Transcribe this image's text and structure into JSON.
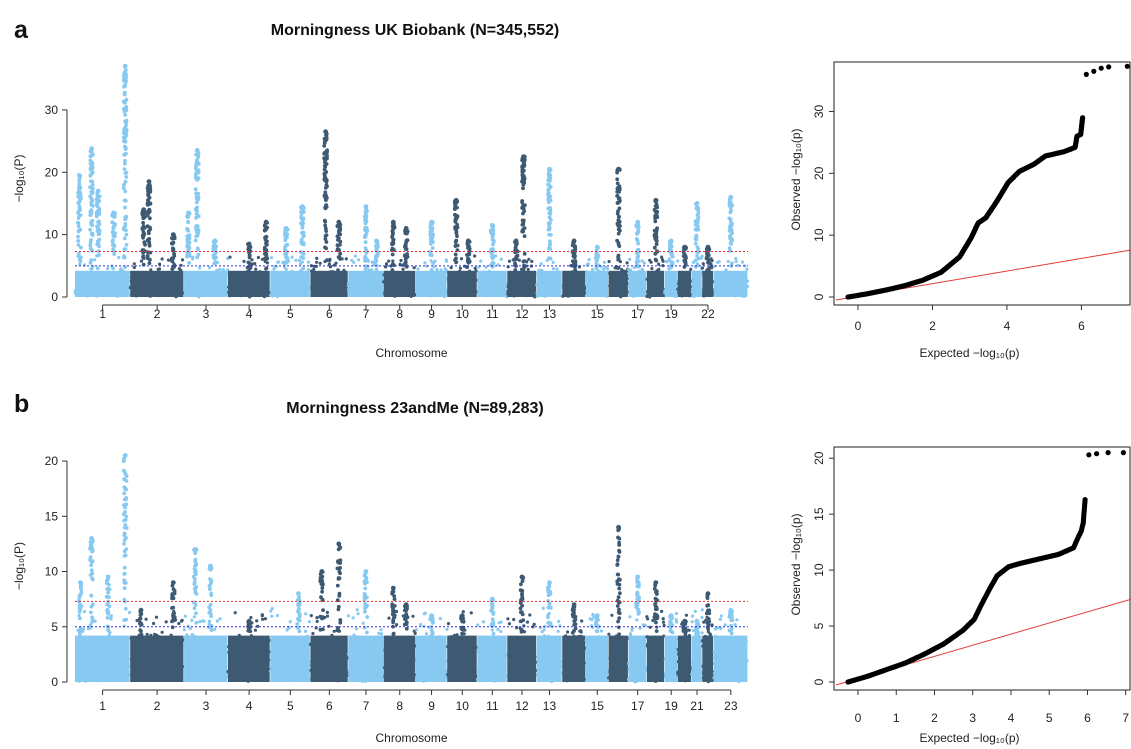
{
  "colors": {
    "light": "#87c9f0",
    "dark": "#3d5a72",
    "sig": "#e03030",
    "sugg": "#3030d0",
    "qq_point": "#000000",
    "qq_line": "#e23a3a"
  },
  "panels": [
    {
      "label": "a",
      "chart_data": {
        "type": "scatter",
        "title": "Morningness UK Biobank (N=345,552)",
        "xlabel": "Chromosome",
        "ylabel": "−log₁₀(P)",
        "ylim": [
          0,
          38
        ],
        "yticks": [
          0,
          10,
          20,
          30
        ],
        "x_tick_labels": [
          "1",
          "2",
          "3",
          "4",
          "5",
          "6",
          "7",
          "8",
          "9",
          "10",
          "11",
          "12",
          "13",
          "15",
          "17",
          "19",
          "22"
        ],
        "genome_wide_threshold": 7.3,
        "suggestive_threshold": 5,
        "chromosomes": [
          {
            "chr": 1,
            "peaks": [
              {
                "pos": 0.08,
                "y": 19.5
              },
              {
                "pos": 0.3,
                "y": 23.8
              },
              {
                "pos": 0.42,
                "y": 17
              },
              {
                "pos": 0.7,
                "y": 13.5
              },
              {
                "pos": 0.91,
                "y": 37
              }
            ]
          },
          {
            "chr": 2,
            "peaks": [
              {
                "pos": 0.25,
                "y": 14
              },
              {
                "pos": 0.35,
                "y": 18.5
              },
              {
                "pos": 0.8,
                "y": 10
              }
            ]
          },
          {
            "chr": 3,
            "peaks": [
              {
                "pos": 0.1,
                "y": 13.5
              },
              {
                "pos": 0.3,
                "y": 23.5
              },
              {
                "pos": 0.7,
                "y": 9
              }
            ]
          },
          {
            "chr": 4,
            "peaks": [
              {
                "pos": 0.5,
                "y": 8.5
              },
              {
                "pos": 0.9,
                "y": 12
              }
            ]
          },
          {
            "chr": 5,
            "peaks": [
              {
                "pos": 0.4,
                "y": 11
              },
              {
                "pos": 0.8,
                "y": 14.5
              }
            ]
          },
          {
            "chr": 6,
            "peaks": [
              {
                "pos": 0.4,
                "y": 26.5
              },
              {
                "pos": 0.75,
                "y": 12
              }
            ]
          },
          {
            "chr": 7,
            "peaks": [
              {
                "pos": 0.5,
                "y": 14.5
              },
              {
                "pos": 0.8,
                "y": 9
              }
            ]
          },
          {
            "chr": 8,
            "peaks": [
              {
                "pos": 0.3,
                "y": 12
              },
              {
                "pos": 0.7,
                "y": 11
              }
            ]
          },
          {
            "chr": 9,
            "peaks": [
              {
                "pos": 0.5,
                "y": 12
              }
            ]
          },
          {
            "chr": 10,
            "peaks": [
              {
                "pos": 0.3,
                "y": 15.5
              },
              {
                "pos": 0.7,
                "y": 9
              }
            ]
          },
          {
            "chr": 11,
            "peaks": [
              {
                "pos": 0.5,
                "y": 11.5
              }
            ]
          },
          {
            "chr": 12,
            "peaks": [
              {
                "pos": 0.3,
                "y": 9
              },
              {
                "pos": 0.55,
                "y": 22.5
              }
            ]
          },
          {
            "chr": 13,
            "peaks": [
              {
                "pos": 0.5,
                "y": 20.5
              }
            ]
          },
          {
            "chr": 14,
            "peaks": [
              {
                "pos": 0.5,
                "y": 9
              }
            ]
          },
          {
            "chr": 15,
            "peaks": [
              {
                "pos": 0.5,
                "y": 8
              }
            ]
          },
          {
            "chr": 16,
            "peaks": [
              {
                "pos": 0.5,
                "y": 20.5
              }
            ]
          },
          {
            "chr": 17,
            "peaks": [
              {
                "pos": 0.5,
                "y": 12
              }
            ]
          },
          {
            "chr": 18,
            "peaks": [
              {
                "pos": 0.5,
                "y": 15.5
              }
            ]
          },
          {
            "chr": 19,
            "peaks": [
              {
                "pos": 0.5,
                "y": 9
              }
            ]
          },
          {
            "chr": 20,
            "peaks": [
              {
                "pos": 0.5,
                "y": 8
              }
            ]
          },
          {
            "chr": 21,
            "peaks": [
              {
                "pos": 0.5,
                "y": 15
              }
            ]
          },
          {
            "chr": 22,
            "peaks": [
              {
                "pos": 0.5,
                "y": 8
              }
            ]
          },
          {
            "chr": 23,
            "peaks": [
              {
                "pos": 0.5,
                "y": 16
              }
            ]
          }
        ]
      },
      "qq_data": {
        "type": "scatter",
        "xlabel": "Expected −log₁₀(p)",
        "ylabel": "Observed −log₁₀(p)",
        "xlim": [
          0,
          7.6
        ],
        "ylim": [
          0,
          38
        ],
        "xticks": [
          0,
          2,
          4,
          6
        ],
        "yticks": [
          0,
          10,
          20,
          30
        ],
        "points": [
          [
            0,
            0
          ],
          [
            0.5,
            0.5
          ],
          [
            1,
            1.1
          ],
          [
            1.5,
            1.8
          ],
          [
            2,
            2.7
          ],
          [
            2.5,
            4
          ],
          [
            3,
            6.5
          ],
          [
            3.3,
            9.5
          ],
          [
            3.5,
            12
          ],
          [
            3.7,
            12.8
          ],
          [
            4,
            15.5
          ],
          [
            4.3,
            18.5
          ],
          [
            4.6,
            20.3
          ],
          [
            5,
            21.5
          ],
          [
            5.3,
            22.8
          ],
          [
            5.8,
            23.5
          ],
          [
            6.1,
            24.2
          ],
          [
            6.15,
            26
          ],
          [
            6.25,
            26.3
          ],
          [
            6.3,
            29
          ],
          [
            6.4,
            36
          ],
          [
            6.6,
            36.5
          ],
          [
            6.8,
            37
          ],
          [
            7.0,
            37.2
          ],
          [
            7.5,
            37.3
          ]
        ],
        "expected_line": [
          [
            0,
            0
          ],
          [
            7.6,
            7.6
          ]
        ]
      }
    },
    {
      "label": "b",
      "chart_data": {
        "type": "scatter",
        "title": "Morningness 23andMe (N=89,283)",
        "xlabel": "Chromosome",
        "ylabel": "−log₁₀(P)",
        "ylim": [
          0,
          21
        ],
        "yticks": [
          0,
          5,
          10,
          15,
          20
        ],
        "x_tick_labels": [
          "1",
          "2",
          "3",
          "4",
          "5",
          "6",
          "7",
          "8",
          "9",
          "10",
          "11",
          "12",
          "13",
          "15",
          "17",
          "19",
          "21",
          "23"
        ],
        "genome_wide_threshold": 7.3,
        "suggestive_threshold": 5,
        "chromosomes": [
          {
            "chr": 1,
            "peaks": [
              {
                "pos": 0.1,
                "y": 9
              },
              {
                "pos": 0.3,
                "y": 13
              },
              {
                "pos": 0.6,
                "y": 9.5
              },
              {
                "pos": 0.91,
                "y": 20.5
              }
            ]
          },
          {
            "chr": 2,
            "peaks": [
              {
                "pos": 0.2,
                "y": 6.5
              },
              {
                "pos": 0.8,
                "y": 9
              }
            ]
          },
          {
            "chr": 3,
            "peaks": [
              {
                "pos": 0.25,
                "y": 12
              },
              {
                "pos": 0.6,
                "y": 10.5
              }
            ]
          },
          {
            "chr": 4,
            "peaks": [
              {
                "pos": 0.5,
                "y": 5.5
              }
            ]
          },
          {
            "chr": 5,
            "peaks": [
              {
                "pos": 0.7,
                "y": 8
              }
            ]
          },
          {
            "chr": 6,
            "peaks": [
              {
                "pos": 0.3,
                "y": 10
              },
              {
                "pos": 0.75,
                "y": 12.5
              }
            ]
          },
          {
            "chr": 7,
            "peaks": [
              {
                "pos": 0.5,
                "y": 10
              }
            ]
          },
          {
            "chr": 8,
            "peaks": [
              {
                "pos": 0.3,
                "y": 8.5
              },
              {
                "pos": 0.7,
                "y": 7
              }
            ]
          },
          {
            "chr": 9,
            "peaks": [
              {
                "pos": 0.5,
                "y": 6
              }
            ]
          },
          {
            "chr": 10,
            "peaks": [
              {
                "pos": 0.5,
                "y": 6
              }
            ]
          },
          {
            "chr": 11,
            "peaks": [
              {
                "pos": 0.5,
                "y": 7.5
              }
            ]
          },
          {
            "chr": 12,
            "peaks": [
              {
                "pos": 0.5,
                "y": 9.5
              }
            ]
          },
          {
            "chr": 13,
            "peaks": [
              {
                "pos": 0.5,
                "y": 9
              }
            ]
          },
          {
            "chr": 14,
            "peaks": [
              {
                "pos": 0.5,
                "y": 7
              }
            ]
          },
          {
            "chr": 15,
            "peaks": [
              {
                "pos": 0.5,
                "y": 6
              }
            ]
          },
          {
            "chr": 16,
            "peaks": [
              {
                "pos": 0.5,
                "y": 14
              }
            ]
          },
          {
            "chr": 17,
            "peaks": [
              {
                "pos": 0.5,
                "y": 9.5
              }
            ]
          },
          {
            "chr": 18,
            "peaks": [
              {
                "pos": 0.5,
                "y": 9
              }
            ]
          },
          {
            "chr": 19,
            "peaks": [
              {
                "pos": 0.5,
                "y": 6
              }
            ]
          },
          {
            "chr": 20,
            "peaks": [
              {
                "pos": 0.5,
                "y": 5.5
              }
            ]
          },
          {
            "chr": 21,
            "peaks": [
              {
                "pos": 0.5,
                "y": 5.5
              }
            ]
          },
          {
            "chr": 22,
            "peaks": [
              {
                "pos": 0.5,
                "y": 8
              }
            ]
          },
          {
            "chr": 23,
            "peaks": [
              {
                "pos": 0.5,
                "y": 6.5
              }
            ]
          }
        ]
      },
      "qq_data": {
        "type": "scatter",
        "xlabel": "Expected −log₁₀(p)",
        "ylabel": "Observed −log₁₀(p)",
        "xlim": [
          0,
          7.4
        ],
        "ylim": [
          0,
          21
        ],
        "xticks": [
          0,
          1,
          2,
          3,
          4,
          5,
          6,
          7
        ],
        "yticks": [
          0,
          5,
          10,
          15,
          20
        ],
        "points": [
          [
            0,
            0
          ],
          [
            0.5,
            0.5
          ],
          [
            1,
            1.1
          ],
          [
            1.5,
            1.7
          ],
          [
            2,
            2.5
          ],
          [
            2.5,
            3.4
          ],
          [
            3,
            4.6
          ],
          [
            3.3,
            5.6
          ],
          [
            3.5,
            7
          ],
          [
            3.7,
            8.3
          ],
          [
            3.9,
            9.5
          ],
          [
            4.2,
            10.3
          ],
          [
            4.5,
            10.6
          ],
          [
            5,
            11
          ],
          [
            5.5,
            11.4
          ],
          [
            5.9,
            12
          ],
          [
            6.0,
            12.8
          ],
          [
            6.1,
            13.5
          ],
          [
            6.15,
            14.2
          ],
          [
            6.2,
            16.3
          ],
          [
            6.3,
            20.3
          ],
          [
            6.5,
            20.4
          ],
          [
            6.8,
            20.5
          ],
          [
            7.2,
            20.5
          ]
        ],
        "expected_line": [
          [
            0,
            0
          ],
          [
            7.4,
            7.4
          ]
        ]
      }
    }
  ]
}
